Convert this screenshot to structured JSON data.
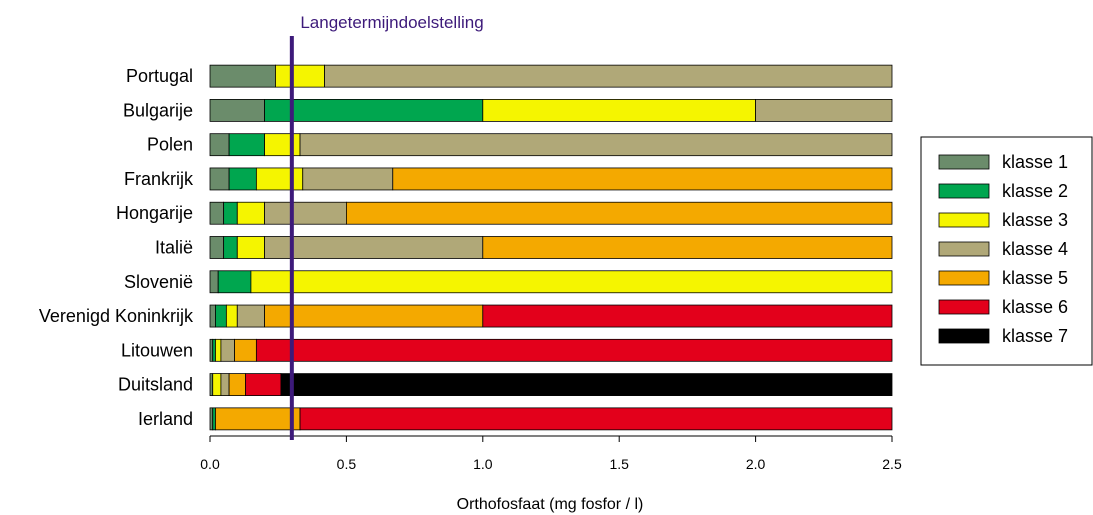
{
  "chart_data": {
    "type": "bar",
    "orientation": "horizontal",
    "stacked": true,
    "xlabel": "Orthofosfaat (mg fosfor / l)",
    "xlim": [
      0,
      2.5
    ],
    "xticks": [
      "0.0",
      "0.5",
      "1.0",
      "1.5",
      "2.0",
      "2.5"
    ],
    "xtick_values": [
      0,
      0.5,
      1.0,
      1.5,
      2.0,
      2.5
    ],
    "grid": false,
    "legend_position": "right",
    "categories": [
      "Portugal",
      "Bulgarije",
      "Polen",
      "Frankrijk",
      "Hongarije",
      "Italië",
      "Slovenië",
      "Verenigd Koninkrijk",
      "Litouwen",
      "Duitsland",
      "Ierland"
    ],
    "series": [
      {
        "name": "klasse 1",
        "color": "#6b8c6b",
        "values": [
          0.24,
          0.2,
          0.07,
          0.07,
          0.05,
          0.05,
          0.03,
          0.02,
          0.01,
          0.01,
          0.01
        ]
      },
      {
        "name": "klasse 2",
        "color": "#00a64f",
        "values": [
          0.0,
          0.8,
          0.13,
          0.1,
          0.05,
          0.05,
          0.12,
          0.04,
          0.01,
          0.0,
          0.01
        ]
      },
      {
        "name": "klasse 3",
        "color": "#f5f500",
        "values": [
          0.18,
          1.0,
          0.13,
          0.17,
          0.1,
          0.1,
          2.35,
          0.04,
          0.02,
          0.03,
          0.0
        ]
      },
      {
        "name": "klasse 4",
        "color": "#b0a878",
        "values": [
          2.08,
          0.5,
          2.17,
          0.33,
          0.3,
          0.8,
          0.0,
          0.1,
          0.05,
          0.03,
          0.0
        ]
      },
      {
        "name": "klasse 5",
        "color": "#f4a900",
        "values": [
          0.0,
          0.0,
          0.0,
          1.83,
          2.0,
          1.5,
          0.0,
          0.8,
          0.08,
          0.06,
          0.31
        ]
      },
      {
        "name": "klasse 6",
        "color": "#e3001b",
        "values": [
          0.0,
          0.0,
          0.0,
          0.0,
          0.0,
          0.0,
          0.0,
          1.5,
          2.33,
          0.13,
          2.17
        ]
      },
      {
        "name": "klasse 7",
        "color": "#000000",
        "values": [
          0.0,
          0.0,
          0.0,
          0.0,
          0.0,
          0.0,
          0.0,
          0.0,
          0.0,
          2.24,
          0.0
        ]
      }
    ],
    "reference_line": {
      "value": 0.3,
      "label": "Langetermijndoelstelling",
      "color": "#3d1a7a"
    }
  }
}
